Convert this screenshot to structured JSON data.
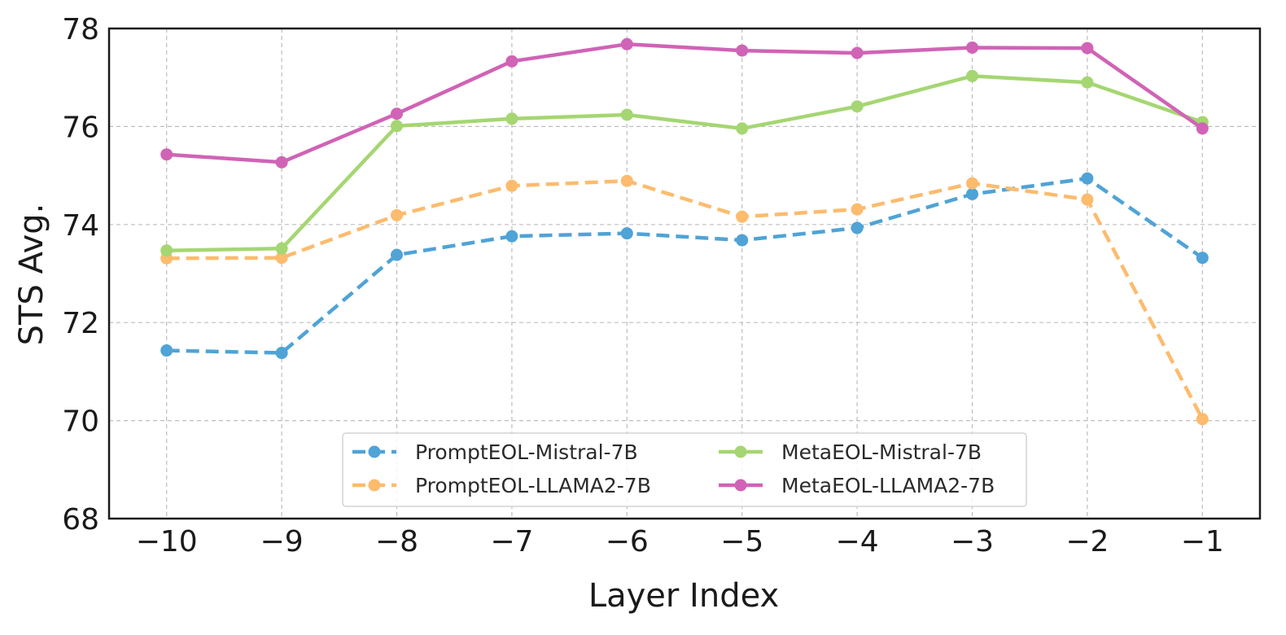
{
  "chart_data": {
    "type": "line",
    "title": "",
    "xlabel": "Layer Index",
    "ylabel": "STS Avg.",
    "x": [
      -10,
      -9,
      -8,
      -7,
      -6,
      -5,
      -4,
      -3,
      -2,
      -1
    ],
    "x_tick_labels": [
      "−10",
      "−9",
      "−8",
      "−7",
      "−6",
      "−5",
      "−4",
      "−3",
      "−2",
      "−1"
    ],
    "xlim": [
      -10.5,
      -0.5
    ],
    "ylim": [
      68,
      78
    ],
    "y_ticks": [
      68,
      70,
      72,
      74,
      76,
      78
    ],
    "y_tick_labels": [
      "68",
      "70",
      "72",
      "74",
      "76",
      "78"
    ],
    "grid": true,
    "legend_position": "bottom-center",
    "series": [
      {
        "name": "PromptEOL-Mistral-7B",
        "color": "#4fa3d6",
        "style": "dashed",
        "values": [
          71.43,
          71.38,
          73.38,
          73.76,
          73.82,
          73.68,
          73.93,
          74.62,
          74.94,
          73.32
        ]
      },
      {
        "name": "PromptEOL-LLAMA2-7B",
        "color": "#fdbb6d",
        "style": "dashed",
        "values": [
          73.31,
          73.32,
          74.19,
          74.79,
          74.89,
          74.16,
          74.31,
          74.84,
          74.51,
          70.03
        ]
      },
      {
        "name": "MetaEOL-Mistral-7B",
        "color": "#a5d672",
        "style": "solid",
        "values": [
          73.47,
          73.51,
          76.01,
          76.16,
          76.24,
          75.96,
          76.41,
          77.03,
          76.9,
          76.09
        ]
      },
      {
        "name": "MetaEOL-LLAMA2-7B",
        "color": "#d063b6",
        "style": "solid",
        "values": [
          75.43,
          75.27,
          76.26,
          77.33,
          77.68,
          77.55,
          77.5,
          77.61,
          77.6,
          75.96
        ]
      }
    ]
  }
}
